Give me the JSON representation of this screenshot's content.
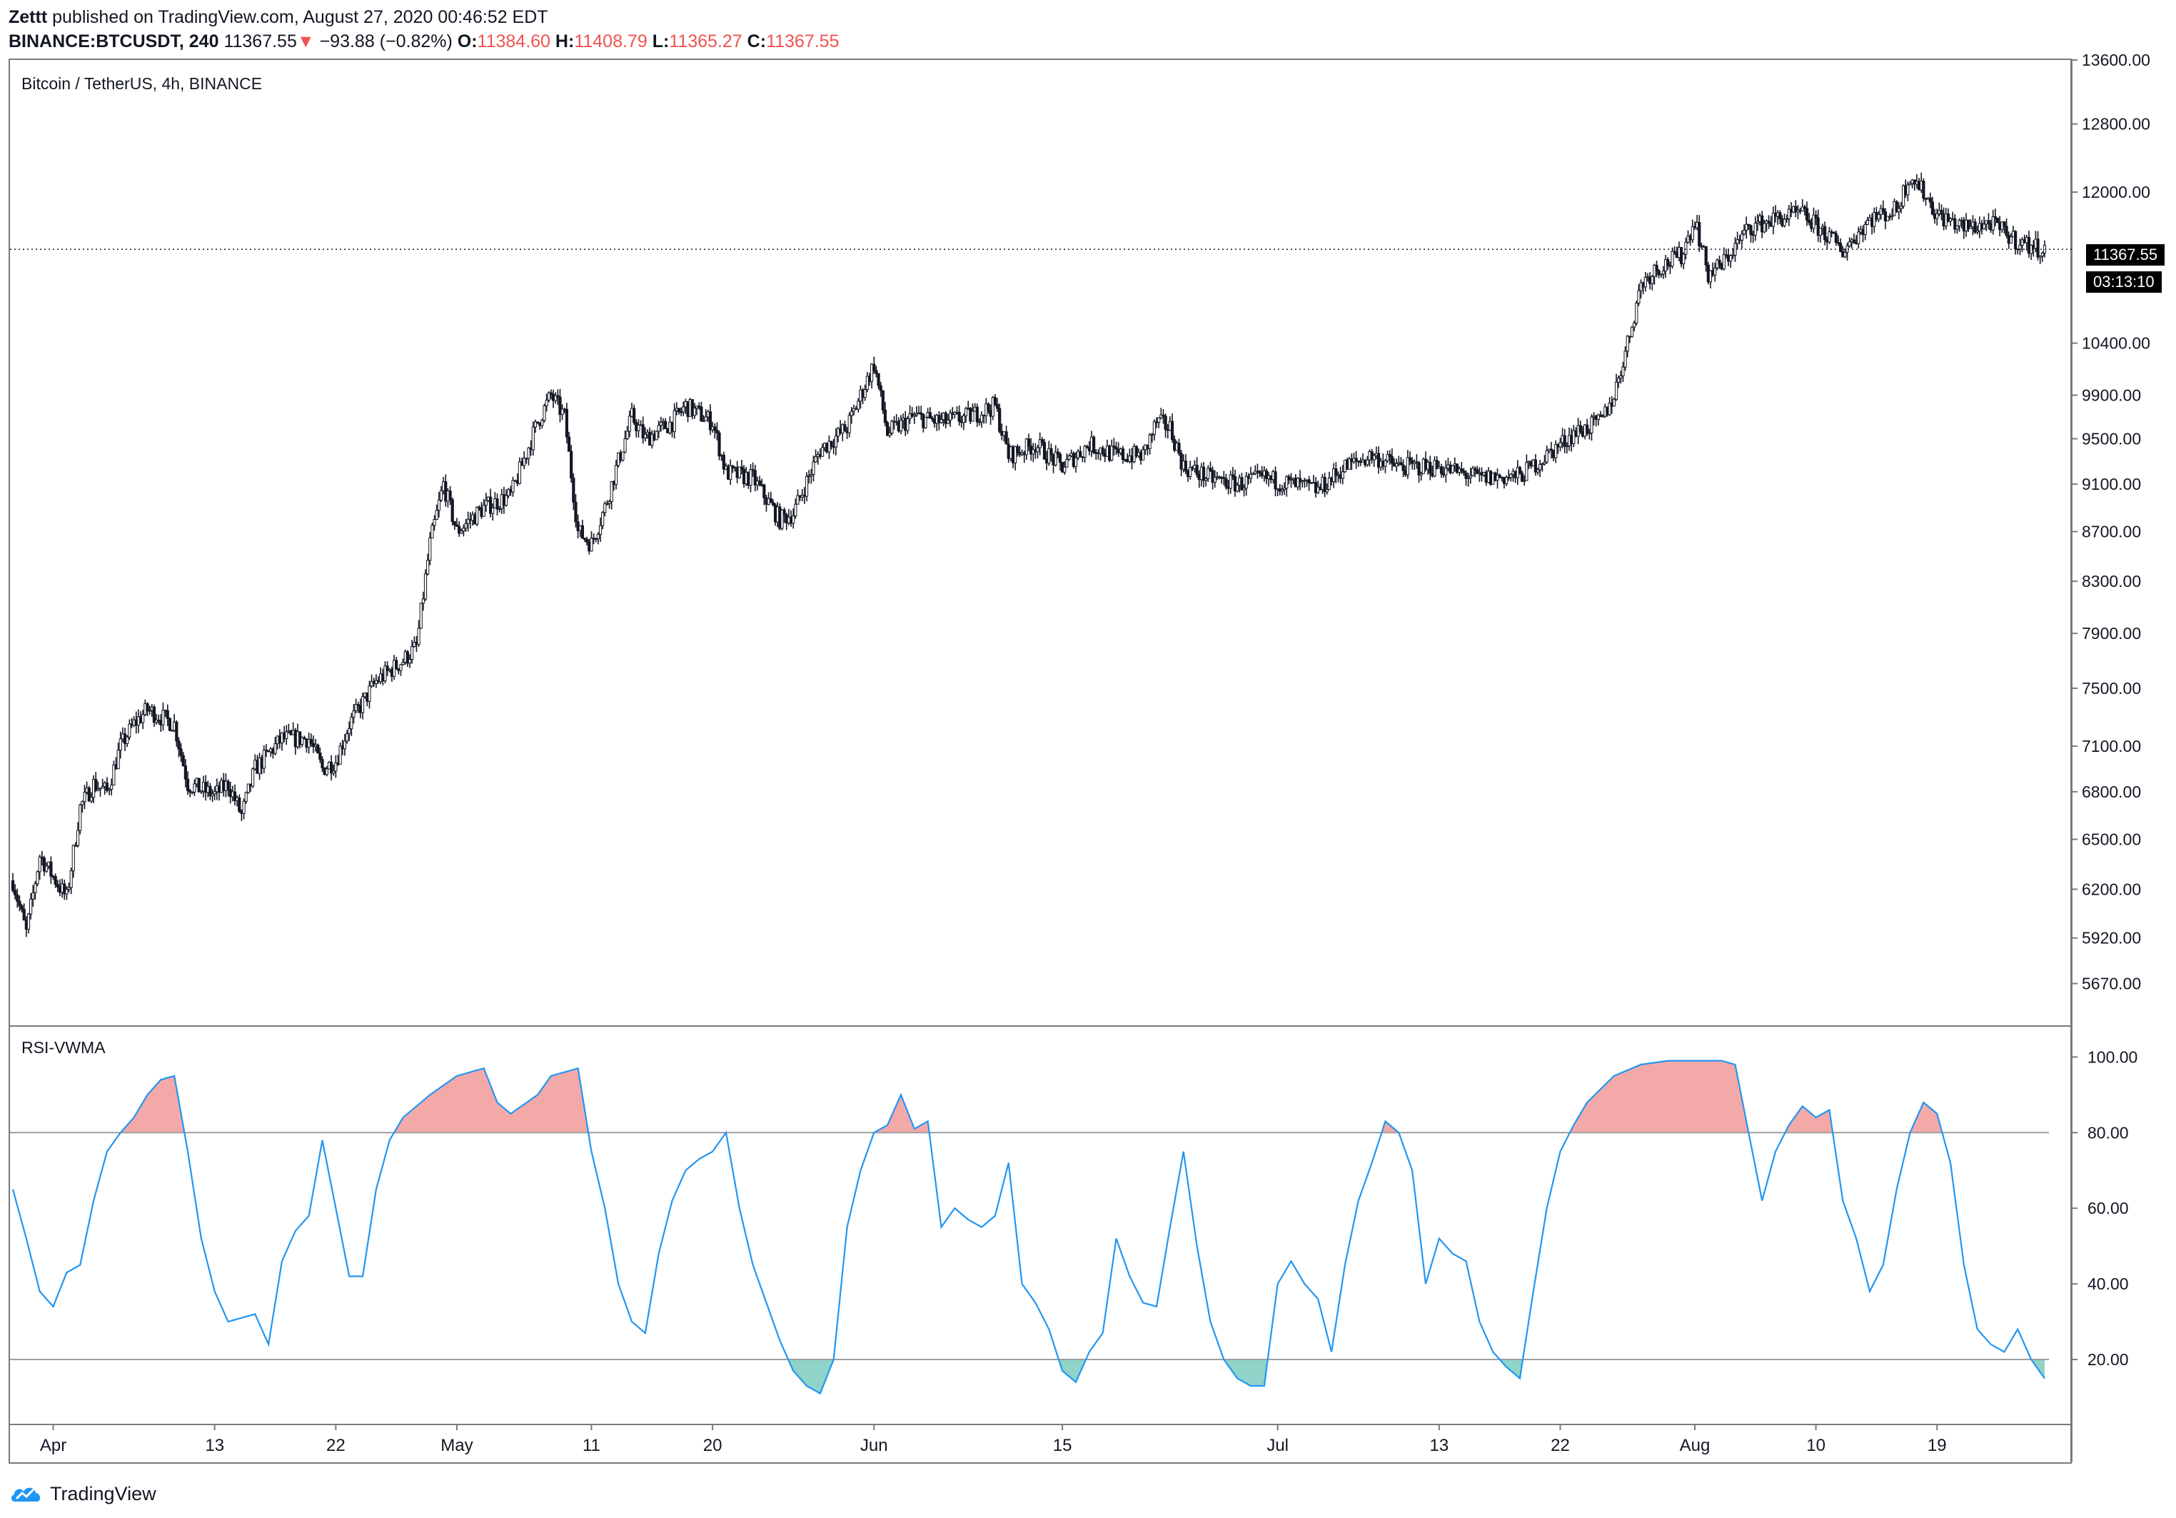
{
  "header": {
    "author": "Zettt",
    "published_text": " published on TradingView.com, August 27, 2020 00:46:52 EDT",
    "symbol": "BINANCE:BTCUSDT, 240",
    "last": "11367.55",
    "arrow": "▼",
    "change": "−93.88 (−0.82%)",
    "o_label": "O:",
    "o_val": "11384.60",
    "h_label": "H:",
    "h_val": "11408.79",
    "l_label": "L:",
    "l_val": "11365.27",
    "c_label": "C:",
    "c_val": "11367.55"
  },
  "price_pane": {
    "label": "Bitcoin / TetherUS, 4h, BINANCE"
  },
  "rsi_pane": {
    "label": "RSI-VWMA"
  },
  "price_tag": {
    "price": "11367.55",
    "countdown": "03:13:10"
  },
  "footer": {
    "brand": "TradingView"
  },
  "colors": {
    "line": "#2196f3",
    "overbought": "#f4a9a9",
    "oversold": "#8fd3c9",
    "candle": "#131722",
    "grid": "#9e9e9e"
  },
  "chart_data": [
    {
      "type": "candlestick",
      "title": "Bitcoin / TetherUS, 4h, BINANCE",
      "scale": "log",
      "ylim": [
        5450,
        13600
      ],
      "y_ticks": [
        13600,
        12800,
        12000,
        10400,
        9900,
        9500,
        9100,
        8700,
        8300,
        7900,
        7500,
        7100,
        6800,
        6500,
        6200,
        5920,
        5670
      ],
      "y_tick_labels": [
        "13600.00",
        "12800.00",
        "12000.00",
        "10400.00",
        "9900.00",
        "9500.00",
        "9100.00",
        "8700.00",
        "8300.00",
        "7900.00",
        "7500.00",
        "7100.00",
        "6800.00",
        "6500.00",
        "6200.00",
        "5920.00",
        "5670.00"
      ],
      "x_ticks": [
        "Apr",
        "13",
        "22",
        "May",
        "11",
        "20",
        "Jun",
        "15",
        "Jul",
        "13",
        "22",
        "Aug",
        "10",
        "19"
      ],
      "x_tick_dates": [
        "2020-04-01",
        "2020-04-13",
        "2020-04-22",
        "2020-05-01",
        "2020-05-11",
        "2020-05-20",
        "2020-06-01",
        "2020-06-15",
        "2020-07-01",
        "2020-07-13",
        "2020-07-22",
        "2020-08-01",
        "2020-08-10",
        "2020-08-19"
      ],
      "xlim": [
        "2020-03-29",
        "2020-08-27"
      ],
      "close_path": [
        {
          "x": "2020-03-29",
          "y": 6250
        },
        {
          "x": "2020-03-30",
          "y": 5950
        },
        {
          "x": "2020-03-31",
          "y": 6400
        },
        {
          "x": "2020-04-02",
          "y": 6150
        },
        {
          "x": "2020-04-03",
          "y": 6700
        },
        {
          "x": "2020-04-04",
          "y": 6850
        },
        {
          "x": "2020-04-05",
          "y": 6800
        },
        {
          "x": "2020-04-06",
          "y": 7100
        },
        {
          "x": "2020-04-07",
          "y": 7250
        },
        {
          "x": "2020-04-08",
          "y": 7350
        },
        {
          "x": "2020-04-10",
          "y": 7250
        },
        {
          "x": "2020-04-11",
          "y": 6850
        },
        {
          "x": "2020-04-13",
          "y": 6780
        },
        {
          "x": "2020-04-14",
          "y": 6850
        },
        {
          "x": "2020-04-15",
          "y": 6650
        },
        {
          "x": "2020-04-16",
          "y": 6950
        },
        {
          "x": "2020-04-17",
          "y": 7050
        },
        {
          "x": "2020-04-18",
          "y": 7150
        },
        {
          "x": "2020-04-20",
          "y": 7150
        },
        {
          "x": "2020-04-21",
          "y": 6950
        },
        {
          "x": "2020-04-22",
          "y": 7000
        },
        {
          "x": "2020-04-23",
          "y": 7250
        },
        {
          "x": "2020-04-25",
          "y": 7550
        },
        {
          "x": "2020-04-27",
          "y": 7700
        },
        {
          "x": "2020-04-28",
          "y": 7800
        },
        {
          "x": "2020-04-29",
          "y": 8600
        },
        {
          "x": "2020-04-30",
          "y": 9100
        },
        {
          "x": "2020-05-01",
          "y": 8700
        },
        {
          "x": "2020-05-03",
          "y": 8900
        },
        {
          "x": "2020-05-05",
          "y": 9000
        },
        {
          "x": "2020-05-07",
          "y": 9650
        },
        {
          "x": "2020-05-08",
          "y": 9900
        },
        {
          "x": "2020-05-09",
          "y": 9700
        },
        {
          "x": "2020-05-10",
          "y": 8700
        },
        {
          "x": "2020-05-11",
          "y": 8600
        },
        {
          "x": "2020-05-12",
          "y": 8900
        },
        {
          "x": "2020-05-13",
          "y": 9300
        },
        {
          "x": "2020-05-14",
          "y": 9700
        },
        {
          "x": "2020-05-15",
          "y": 9500
        },
        {
          "x": "2020-05-17",
          "y": 9650
        },
        {
          "x": "2020-05-18",
          "y": 9800
        },
        {
          "x": "2020-05-20",
          "y": 9650
        },
        {
          "x": "2020-05-21",
          "y": 9200
        },
        {
          "x": "2020-05-23",
          "y": 9150
        },
        {
          "x": "2020-05-25",
          "y": 8800
        },
        {
          "x": "2020-05-26",
          "y": 8850
        },
        {
          "x": "2020-05-28",
          "y": 9400
        },
        {
          "x": "2020-05-30",
          "y": 9600
        },
        {
          "x": "2020-06-01",
          "y": 10200
        },
        {
          "x": "2020-06-02",
          "y": 9550
        },
        {
          "x": "2020-06-04",
          "y": 9700
        },
        {
          "x": "2020-06-06",
          "y": 9650
        },
        {
          "x": "2020-06-08",
          "y": 9700
        },
        {
          "x": "2020-06-10",
          "y": 9800
        },
        {
          "x": "2020-06-11",
          "y": 9350
        },
        {
          "x": "2020-06-13",
          "y": 9450
        },
        {
          "x": "2020-06-15",
          "y": 9250
        },
        {
          "x": "2020-06-17",
          "y": 9450
        },
        {
          "x": "2020-06-19",
          "y": 9350
        },
        {
          "x": "2020-06-21",
          "y": 9350
        },
        {
          "x": "2020-06-22",
          "y": 9650
        },
        {
          "x": "2020-06-23",
          "y": 9600
        },
        {
          "x": "2020-06-24",
          "y": 9250
        },
        {
          "x": "2020-06-26",
          "y": 9150
        },
        {
          "x": "2020-06-28",
          "y": 9100
        },
        {
          "x": "2020-06-30",
          "y": 9150
        },
        {
          "x": "2020-07-02",
          "y": 9100
        },
        {
          "x": "2020-07-04",
          "y": 9050
        },
        {
          "x": "2020-07-06",
          "y": 9250
        },
        {
          "x": "2020-07-08",
          "y": 9350
        },
        {
          "x": "2020-07-10",
          "y": 9250
        },
        {
          "x": "2020-07-13",
          "y": 9250
        },
        {
          "x": "2020-07-16",
          "y": 9150
        },
        {
          "x": "2020-07-19",
          "y": 9170
        },
        {
          "x": "2020-07-21",
          "y": 9350
        },
        {
          "x": "2020-07-23",
          "y": 9550
        },
        {
          "x": "2020-07-25",
          "y": 9650
        },
        {
          "x": "2020-07-26",
          "y": 9900
        },
        {
          "x": "2020-07-27",
          "y": 10400
        },
        {
          "x": "2020-07-28",
          "y": 11000
        },
        {
          "x": "2020-07-29",
          "y": 11150
        },
        {
          "x": "2020-07-31",
          "y": 11300
        },
        {
          "x": "2020-08-01",
          "y": 11700
        },
        {
          "x": "2020-08-02",
          "y": 11100
        },
        {
          "x": "2020-08-03",
          "y": 11200
        },
        {
          "x": "2020-08-05",
          "y": 11600
        },
        {
          "x": "2020-08-07",
          "y": 11700
        },
        {
          "x": "2020-08-09",
          "y": 11750
        },
        {
          "x": "2020-08-11",
          "y": 11500
        },
        {
          "x": "2020-08-12",
          "y": 11350
        },
        {
          "x": "2020-08-14",
          "y": 11700
        },
        {
          "x": "2020-08-16",
          "y": 11800
        },
        {
          "x": "2020-08-17",
          "y": 12200
        },
        {
          "x": "2020-08-18",
          "y": 12000
        },
        {
          "x": "2020-08-19",
          "y": 11750
        },
        {
          "x": "2020-08-21",
          "y": 11600
        },
        {
          "x": "2020-08-23",
          "y": 11650
        },
        {
          "x": "2020-08-25",
          "y": 11450
        },
        {
          "x": "2020-08-26",
          "y": 11400
        },
        {
          "x": "2020-08-27",
          "y": 11367.55
        }
      ],
      "last_price": 11367.55
    },
    {
      "type": "line",
      "title": "RSI-VWMA",
      "ylim": [
        3,
        108
      ],
      "y_ticks": [
        100,
        80,
        60,
        40,
        20
      ],
      "y_tick_labels": [
        "100.00",
        "80.00",
        "60.00",
        "40.00",
        "20.00"
      ],
      "overbought": 80,
      "oversold": 20,
      "values": [
        {
          "x": "2020-03-29",
          "y": 65
        },
        {
          "x": "2020-03-30",
          "y": 52
        },
        {
          "x": "2020-03-31",
          "y": 38
        },
        {
          "x": "2020-04-01",
          "y": 34
        },
        {
          "x": "2020-04-02",
          "y": 43
        },
        {
          "x": "2020-04-03",
          "y": 45
        },
        {
          "x": "2020-04-04",
          "y": 62
        },
        {
          "x": "2020-04-05",
          "y": 75
        },
        {
          "x": "2020-04-06",
          "y": 80
        },
        {
          "x": "2020-04-07",
          "y": 84
        },
        {
          "x": "2020-04-08",
          "y": 90
        },
        {
          "x": "2020-04-09",
          "y": 94
        },
        {
          "x": "2020-04-10",
          "y": 95
        },
        {
          "x": "2020-04-11",
          "y": 75
        },
        {
          "x": "2020-04-12",
          "y": 52
        },
        {
          "x": "2020-04-13",
          "y": 38
        },
        {
          "x": "2020-04-14",
          "y": 30
        },
        {
          "x": "2020-04-15",
          "y": 31
        },
        {
          "x": "2020-04-16",
          "y": 32
        },
        {
          "x": "2020-04-17",
          "y": 24
        },
        {
          "x": "2020-04-18",
          "y": 46
        },
        {
          "x": "2020-04-19",
          "y": 54
        },
        {
          "x": "2020-04-20",
          "y": 58
        },
        {
          "x": "2020-04-21",
          "y": 78
        },
        {
          "x": "2020-04-22",
          "y": 60
        },
        {
          "x": "2020-04-23",
          "y": 42
        },
        {
          "x": "2020-04-24",
          "y": 42
        },
        {
          "x": "2020-04-25",
          "y": 65
        },
        {
          "x": "2020-04-26",
          "y": 78
        },
        {
          "x": "2020-04-27",
          "y": 84
        },
        {
          "x": "2020-04-29",
          "y": 90
        },
        {
          "x": "2020-05-01",
          "y": 95
        },
        {
          "x": "2020-05-03",
          "y": 97
        },
        {
          "x": "2020-05-04",
          "y": 88
        },
        {
          "x": "2020-05-05",
          "y": 85
        },
        {
          "x": "2020-05-07",
          "y": 90
        },
        {
          "x": "2020-05-08",
          "y": 95
        },
        {
          "x": "2020-05-10",
          "y": 97
        },
        {
          "x": "2020-05-11",
          "y": 75
        },
        {
          "x": "2020-05-12",
          "y": 60
        },
        {
          "x": "2020-05-13",
          "y": 40
        },
        {
          "x": "2020-05-14",
          "y": 30
        },
        {
          "x": "2020-05-15",
          "y": 27
        },
        {
          "x": "2020-05-16",
          "y": 48
        },
        {
          "x": "2020-05-17",
          "y": 62
        },
        {
          "x": "2020-05-18",
          "y": 70
        },
        {
          "x": "2020-05-19",
          "y": 73
        },
        {
          "x": "2020-05-20",
          "y": 75
        },
        {
          "x": "2020-05-21",
          "y": 80
        },
        {
          "x": "2020-05-22",
          "y": 60
        },
        {
          "x": "2020-05-23",
          "y": 45
        },
        {
          "x": "2020-05-24",
          "y": 35
        },
        {
          "x": "2020-05-25",
          "y": 25
        },
        {
          "x": "2020-05-26",
          "y": 17
        },
        {
          "x": "2020-05-27",
          "y": 13
        },
        {
          "x": "2020-05-28",
          "y": 11
        },
        {
          "x": "2020-05-29",
          "y": 20
        },
        {
          "x": "2020-05-30",
          "y": 55
        },
        {
          "x": "2020-05-31",
          "y": 70
        },
        {
          "x": "2020-06-01",
          "y": 80
        },
        {
          "x": "2020-06-02",
          "y": 82
        },
        {
          "x": "2020-06-03",
          "y": 90
        },
        {
          "x": "2020-06-04",
          "y": 81
        },
        {
          "x": "2020-06-05",
          "y": 83
        },
        {
          "x": "2020-06-06",
          "y": 55
        },
        {
          "x": "2020-06-07",
          "y": 60
        },
        {
          "x": "2020-06-08",
          "y": 57
        },
        {
          "x": "2020-06-09",
          "y": 55
        },
        {
          "x": "2020-06-10",
          "y": 58
        },
        {
          "x": "2020-06-11",
          "y": 72
        },
        {
          "x": "2020-06-12",
          "y": 40
        },
        {
          "x": "2020-06-13",
          "y": 35
        },
        {
          "x": "2020-06-14",
          "y": 28
        },
        {
          "x": "2020-06-15",
          "y": 17
        },
        {
          "x": "2020-06-16",
          "y": 14
        },
        {
          "x": "2020-06-17",
          "y": 22
        },
        {
          "x": "2020-06-18",
          "y": 27
        },
        {
          "x": "2020-06-19",
          "y": 52
        },
        {
          "x": "2020-06-20",
          "y": 42
        },
        {
          "x": "2020-06-21",
          "y": 35
        },
        {
          "x": "2020-06-22",
          "y": 34
        },
        {
          "x": "2020-06-23",
          "y": 55
        },
        {
          "x": "2020-06-24",
          "y": 75
        },
        {
          "x": "2020-06-25",
          "y": 50
        },
        {
          "x": "2020-06-26",
          "y": 30
        },
        {
          "x": "2020-06-27",
          "y": 20
        },
        {
          "x": "2020-06-28",
          "y": 15
        },
        {
          "x": "2020-06-29",
          "y": 13
        },
        {
          "x": "2020-06-30",
          "y": 13
        },
        {
          "x": "2020-07-01",
          "y": 40
        },
        {
          "x": "2020-07-02",
          "y": 46
        },
        {
          "x": "2020-07-03",
          "y": 40
        },
        {
          "x": "2020-07-04",
          "y": 36
        },
        {
          "x": "2020-07-05",
          "y": 22
        },
        {
          "x": "2020-07-06",
          "y": 45
        },
        {
          "x": "2020-07-07",
          "y": 62
        },
        {
          "x": "2020-07-08",
          "y": 72
        },
        {
          "x": "2020-07-09",
          "y": 83
        },
        {
          "x": "2020-07-10",
          "y": 80
        },
        {
          "x": "2020-07-11",
          "y": 70
        },
        {
          "x": "2020-07-12",
          "y": 40
        },
        {
          "x": "2020-07-13",
          "y": 52
        },
        {
          "x": "2020-07-14",
          "y": 48
        },
        {
          "x": "2020-07-15",
          "y": 46
        },
        {
          "x": "2020-07-16",
          "y": 30
        },
        {
          "x": "2020-07-17",
          "y": 22
        },
        {
          "x": "2020-07-18",
          "y": 18
        },
        {
          "x": "2020-07-19",
          "y": 15
        },
        {
          "x": "2020-07-20",
          "y": 38
        },
        {
          "x": "2020-07-21",
          "y": 60
        },
        {
          "x": "2020-07-22",
          "y": 75
        },
        {
          "x": "2020-07-23",
          "y": 82
        },
        {
          "x": "2020-07-24",
          "y": 88
        },
        {
          "x": "2020-07-26",
          "y": 95
        },
        {
          "x": "2020-07-28",
          "y": 98
        },
        {
          "x": "2020-07-30",
          "y": 99
        },
        {
          "x": "2020-08-01",
          "y": 99
        },
        {
          "x": "2020-08-03",
          "y": 99
        },
        {
          "x": "2020-08-04",
          "y": 98
        },
        {
          "x": "2020-08-05",
          "y": 80
        },
        {
          "x": "2020-08-06",
          "y": 62
        },
        {
          "x": "2020-08-07",
          "y": 75
        },
        {
          "x": "2020-08-08",
          "y": 82
        },
        {
          "x": "2020-08-09",
          "y": 87
        },
        {
          "x": "2020-08-10",
          "y": 84
        },
        {
          "x": "2020-08-11",
          "y": 86
        },
        {
          "x": "2020-08-12",
          "y": 62
        },
        {
          "x": "2020-08-13",
          "y": 52
        },
        {
          "x": "2020-08-14",
          "y": 38
        },
        {
          "x": "2020-08-15",
          "y": 45
        },
        {
          "x": "2020-08-16",
          "y": 65
        },
        {
          "x": "2020-08-17",
          "y": 80
        },
        {
          "x": "2020-08-18",
          "y": 88
        },
        {
          "x": "2020-08-19",
          "y": 85
        },
        {
          "x": "2020-08-20",
          "y": 72
        },
        {
          "x": "2020-08-21",
          "y": 45
        },
        {
          "x": "2020-08-22",
          "y": 28
        },
        {
          "x": "2020-08-23",
          "y": 24
        },
        {
          "x": "2020-08-24",
          "y": 22
        },
        {
          "x": "2020-08-25",
          "y": 28
        },
        {
          "x": "2020-08-26",
          "y": 20
        },
        {
          "x": "2020-08-27",
          "y": 15
        }
      ]
    }
  ]
}
